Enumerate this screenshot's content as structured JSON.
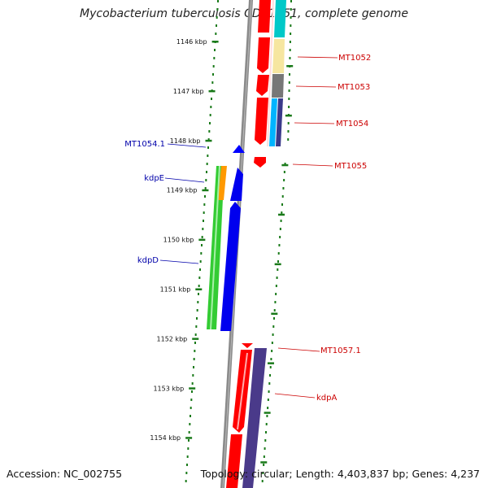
{
  "title": "Mycobacterium tuberculosis CDC1551, complete genome",
  "accession": "Accession: NC_002755",
  "topology": "Topology: circular; Length: 4,403,837 bp; Genes: 4,237",
  "colors": {
    "backbone": "#888888",
    "ticks": "#1a7a1a",
    "label_right": "#cc0000",
    "label_left": "#0000aa"
  },
  "ticks": [
    {
      "label": "1146 kbp"
    },
    {
      "label": "1147 kbp"
    },
    {
      "label": "1148 kbp"
    },
    {
      "label": "1149 kbp"
    },
    {
      "label": "1150 kbp"
    },
    {
      "label": "1151 kbp"
    },
    {
      "label": "1152 kbp"
    },
    {
      "label": "1153 kbp"
    },
    {
      "label": "1154 kbp"
    }
  ],
  "labels_right": [
    {
      "text": "MT1052"
    },
    {
      "text": "MT1053"
    },
    {
      "text": "MT1054"
    },
    {
      "text": "MT1055"
    },
    {
      "text": "MT1057.1"
    },
    {
      "text": "kdpA"
    }
  ],
  "labels_left": [
    {
      "text": "MT1054.1"
    },
    {
      "text": "kdpE"
    },
    {
      "text": "kdpD"
    }
  ]
}
